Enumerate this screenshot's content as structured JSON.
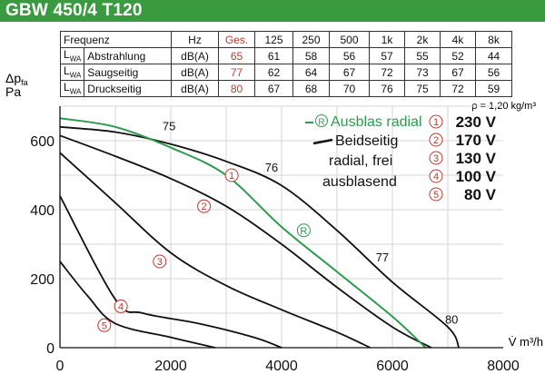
{
  "header": {
    "title": "GBW 450/4 T120"
  },
  "table": {
    "header": {
      "label": "Frequenz",
      "unit": "Hz",
      "ges": "Ges.",
      "bands": [
        "125",
        "250",
        "500",
        "1k",
        "2k",
        "4k",
        "8k"
      ]
    },
    "rows": [
      {
        "sym": "L",
        "sub": "WA",
        "name": "Abstrahlung",
        "unit": "dB(A)",
        "ges": "65",
        "values": [
          "61",
          "58",
          "56",
          "57",
          "55",
          "52",
          "44"
        ]
      },
      {
        "sym": "L",
        "sub": "WA",
        "name": "Saugseitig",
        "unit": "dB(A)",
        "ges": "77",
        "values": [
          "62",
          "64",
          "67",
          "72",
          "73",
          "67",
          "56"
        ]
      },
      {
        "sym": "L",
        "sub": "WA",
        "name": "Druckseitig",
        "unit": "dB(A)",
        "ges": "80",
        "values": [
          "67",
          "68",
          "70",
          "76",
          "75",
          "72",
          "59"
        ]
      }
    ]
  },
  "chart_data": {
    "type": "line",
    "ylabel_main": "Δp",
    "ylabel_sub": "fa",
    "ylabel_unit": "Pa",
    "xlabel": "V̇ m³/h",
    "density_note": "ρ = 1,20 kg/m³",
    "xlim": [
      0,
      8000
    ],
    "ylim": [
      0,
      700
    ],
    "x_ticks": [
      "0",
      "2000",
      "4000",
      "6000",
      "8000"
    ],
    "y_ticks": [
      "0",
      "200",
      "400",
      "600"
    ],
    "colors": {
      "black": "#111111",
      "green": "#2e9a4e",
      "red": "#c0392b"
    },
    "series": [
      {
        "name": "230 V",
        "color": "black",
        "points": [
          [
            0,
            640
          ],
          [
            1000,
            625
          ],
          [
            2000,
            590
          ],
          [
            3000,
            540
          ],
          [
            4000,
            470
          ],
          [
            5000,
            340
          ],
          [
            6000,
            190
          ],
          [
            7000,
            60
          ],
          [
            7200,
            0
          ]
        ]
      },
      {
        "name": "170 V",
        "color": "black",
        "points": [
          [
            0,
            615
          ],
          [
            1000,
            555
          ],
          [
            2000,
            490
          ],
          [
            3000,
            410
          ],
          [
            4000,
            300
          ],
          [
            5000,
            175
          ],
          [
            6000,
            60
          ],
          [
            6700,
            0
          ]
        ]
      },
      {
        "name": "130 V",
        "color": "black",
        "points": [
          [
            0,
            565
          ],
          [
            1000,
            420
          ],
          [
            2000,
            275
          ],
          [
            3000,
            180
          ],
          [
            4000,
            110
          ],
          [
            5000,
            45
          ],
          [
            5600,
            0
          ]
        ]
      },
      {
        "name": "100 V",
        "color": "black",
        "points": [
          [
            0,
            440
          ],
          [
            1000,
            140
          ],
          [
            1500,
            100
          ],
          [
            2500,
            70
          ],
          [
            3500,
            30
          ],
          [
            4000,
            0
          ]
        ]
      },
      {
        "name": "80 V",
        "color": "black",
        "points": [
          [
            0,
            250
          ],
          [
            500,
            150
          ],
          [
            1000,
            70
          ],
          [
            2000,
            30
          ],
          [
            2800,
            0
          ]
        ]
      },
      {
        "name": "Ausblas radial",
        "color": "green",
        "points": [
          [
            0,
            665
          ],
          [
            1000,
            640
          ],
          [
            2000,
            580
          ],
          [
            3000,
            500
          ],
          [
            4000,
            350
          ],
          [
            5000,
            220
          ],
          [
            6000,
            90
          ],
          [
            6600,
            0
          ]
        ]
      }
    ],
    "markers": [
      {
        "label": "1",
        "x": 3100,
        "y": 500
      },
      {
        "label": "2",
        "x": 2600,
        "y": 410
      },
      {
        "label": "3",
        "x": 1800,
        "y": 250
      },
      {
        "label": "4",
        "x": 1100,
        "y": 120
      },
      {
        "label": "5",
        "x": 800,
        "y": 65
      },
      {
        "label": "R",
        "x": 4400,
        "y": 340,
        "green": true
      }
    ],
    "isolines": [
      {
        "label": "75",
        "x": 1850,
        "y": 630
      },
      {
        "label": "76",
        "x": 3700,
        "y": 510
      },
      {
        "label": "77",
        "x": 5700,
        "y": 250
      },
      {
        "label": "80",
        "x": 6950,
        "y": 70
      }
    ],
    "legend": {
      "radial_label": "Ausblas radial",
      "radial_symbol": "R",
      "both_label_lines": [
        "Beidseitig",
        "radial, frei",
        "ausblasend"
      ],
      "voltages": [
        {
          "num": "1",
          "text": "230 V"
        },
        {
          "num": "2",
          "text": "170 V"
        },
        {
          "num": "3",
          "text": "130 V"
        },
        {
          "num": "4",
          "text": "100 V"
        },
        {
          "num": "5",
          "text": "80 V"
        }
      ]
    }
  }
}
